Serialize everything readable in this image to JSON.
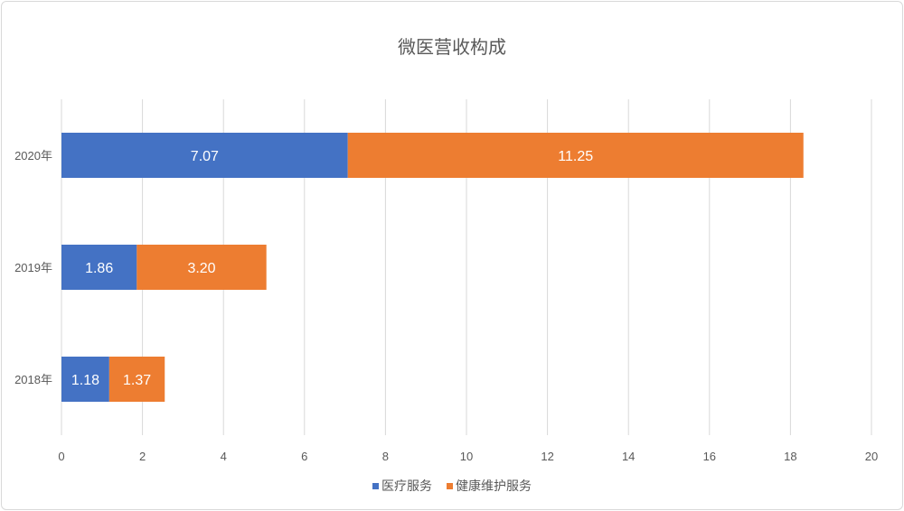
{
  "chart_data": {
    "type": "bar",
    "orientation": "horizontal",
    "stacked": true,
    "title": "微医营收构成",
    "categories": [
      "2020年",
      "2019年",
      "2018年"
    ],
    "series": [
      {
        "name": "医疗服务",
        "values": [
          7.07,
          1.86,
          1.18
        ],
        "labels": [
          "7.07",
          "1.86",
          "1.18"
        ],
        "color": "#4472c4"
      },
      {
        "name": "健康维护服务",
        "values": [
          11.25,
          3.2,
          1.37
        ],
        "labels": [
          "11.25",
          "3.20",
          "1.37"
        ],
        "color": "#ed7d31"
      }
    ],
    "xlim": [
      0,
      20
    ],
    "xticks": [
      "0",
      "2",
      "4",
      "6",
      "8",
      "10",
      "12",
      "14",
      "16",
      "18",
      "20"
    ],
    "grid": true,
    "legend": "bottom"
  }
}
